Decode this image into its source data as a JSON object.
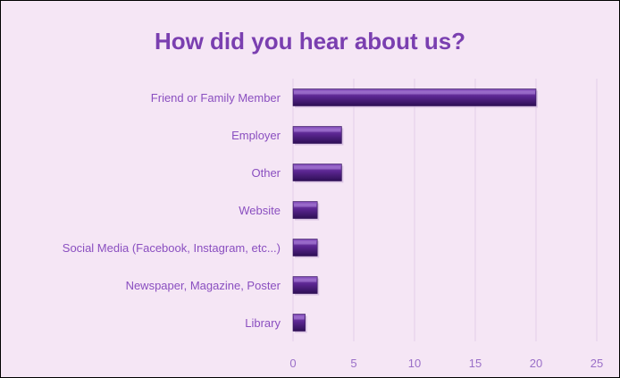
{
  "chart_data": {
    "type": "bar",
    "orientation": "horizontal",
    "title": "How did you hear about us?",
    "categories": [
      "Friend or Family Member",
      "Employer",
      "Other",
      "Website",
      "Social Media (Facebook, Instagram, etc...)",
      "Newspaper, Magazine, Poster",
      "Library"
    ],
    "values": [
      20,
      4,
      4,
      2,
      2,
      2,
      1
    ],
    "xlim": [
      0,
      25
    ],
    "xticks": [
      0,
      5,
      10,
      15,
      20,
      25
    ],
    "xlabel": "",
    "ylabel": "",
    "grid": "vertical",
    "legend": "none",
    "colors": {
      "background": "#f5e6f5",
      "bar": "#5a2590",
      "bar_highlight": "#8a55c0",
      "bar_shadow": "#2e0f55",
      "title": "#7a3fb0",
      "labels": "#8a4fc0",
      "gridline": "#e2cfe9"
    }
  }
}
